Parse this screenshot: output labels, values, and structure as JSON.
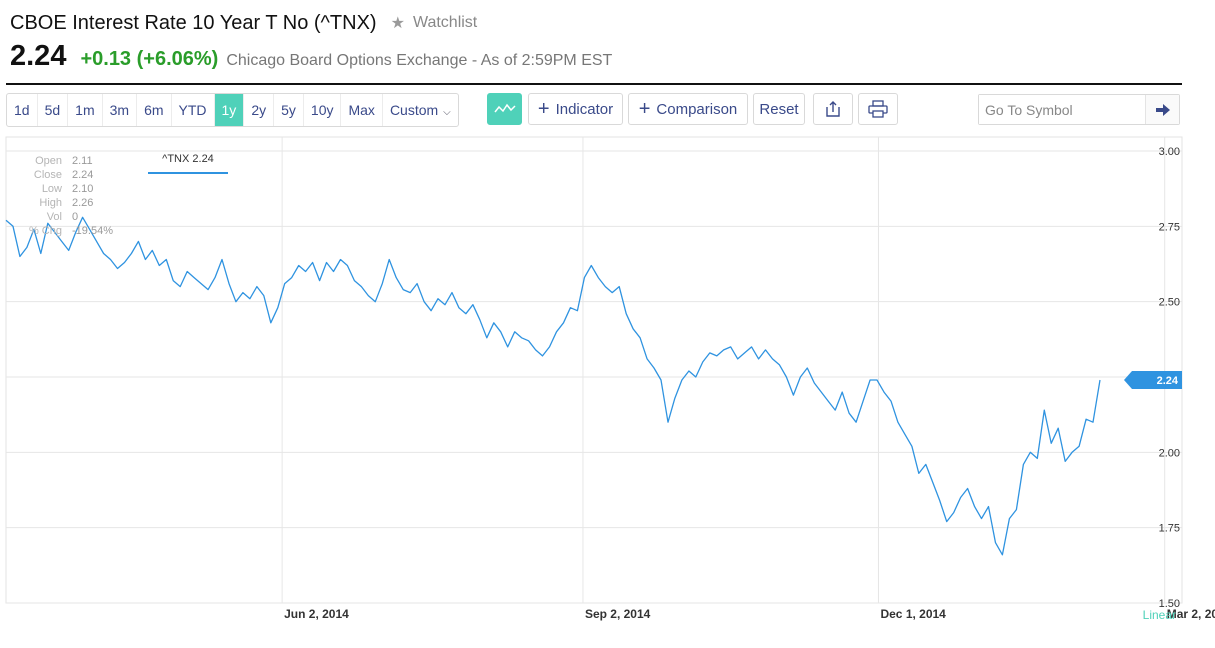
{
  "header": {
    "title": "CBOE Interest Rate 10 Year T No (^TNX)",
    "watchlist_label": "Watchlist",
    "price": "2.24",
    "change": "+0.13 (+6.06%)",
    "exchange_info": "Chicago Board Options Exchange - As of 2:59PM EST"
  },
  "toolbar": {
    "ranges": [
      "1d",
      "5d",
      "1m",
      "3m",
      "6m",
      "YTD",
      "1y",
      "2y",
      "5y",
      "10y",
      "Max",
      "Custom"
    ],
    "active_range": "1y",
    "indicator_label": "Indicator",
    "comparison_label": "Comparison",
    "reset_label": "Reset",
    "symbol_placeholder": "Go To Symbol"
  },
  "stats": {
    "labels": [
      "Open",
      "Close",
      "Low",
      "High",
      "Vol",
      "% Chg"
    ],
    "values": [
      "2.11",
      "2.24",
      "2.10",
      "2.26",
      "0",
      "-19.54%"
    ]
  },
  "legend": {
    "label": "^TNX 2.24"
  },
  "chart_data": {
    "type": "line",
    "series": [
      {
        "name": "^TNX",
        "values": [
          2.77,
          2.75,
          2.65,
          2.68,
          2.74,
          2.66,
          2.76,
          2.73,
          2.7,
          2.67,
          2.73,
          2.78,
          2.74,
          2.7,
          2.66,
          2.64,
          2.61,
          2.63,
          2.66,
          2.7,
          2.64,
          2.67,
          2.62,
          2.64,
          2.57,
          2.55,
          2.6,
          2.58,
          2.56,
          2.54,
          2.58,
          2.64,
          2.56,
          2.5,
          2.53,
          2.51,
          2.55,
          2.52,
          2.43,
          2.48,
          2.56,
          2.58,
          2.62,
          2.6,
          2.63,
          2.57,
          2.63,
          2.6,
          2.64,
          2.62,
          2.57,
          2.55,
          2.52,
          2.5,
          2.56,
          2.64,
          2.58,
          2.54,
          2.53,
          2.56,
          2.5,
          2.47,
          2.51,
          2.49,
          2.53,
          2.48,
          2.46,
          2.49,
          2.44,
          2.38,
          2.43,
          2.4,
          2.35,
          2.4,
          2.38,
          2.37,
          2.34,
          2.32,
          2.35,
          2.4,
          2.43,
          2.48,
          2.47,
          2.58,
          2.62,
          2.58,
          2.55,
          2.53,
          2.55,
          2.46,
          2.41,
          2.38,
          2.31,
          2.28,
          2.24,
          2.1,
          2.18,
          2.24,
          2.27,
          2.25,
          2.3,
          2.33,
          2.32,
          2.34,
          2.35,
          2.31,
          2.33,
          2.35,
          2.31,
          2.34,
          2.31,
          2.29,
          2.25,
          2.19,
          2.25,
          2.28,
          2.23,
          2.2,
          2.17,
          2.14,
          2.2,
          2.13,
          2.1,
          2.17,
          2.24,
          2.24,
          2.2,
          2.17,
          2.1,
          2.06,
          2.02,
          1.93,
          1.96,
          1.9,
          1.84,
          1.77,
          1.8,
          1.85,
          1.88,
          1.82,
          1.78,
          1.82,
          1.7,
          1.66,
          1.78,
          1.81,
          1.96,
          2.0,
          1.98,
          2.14,
          2.03,
          2.08,
          1.97,
          2.0,
          2.02,
          2.11,
          2.1,
          2.24
        ]
      }
    ],
    "x_tick_labels": [
      "Jun 2, 2014",
      "Sep 2, 2014",
      "Dec 1, 2014",
      "Mar 2, 20"
    ],
    "x_tick_positions": [
      0.2348,
      0.4906,
      0.7419,
      0.9853
    ],
    "y_ticks": [
      "3.00",
      "2.75",
      "2.50",
      "2.25",
      "2.00",
      "1.75",
      "1.50"
    ],
    "ylim": [
      1.5,
      3.0
    ],
    "last_value_label": "2.24",
    "scale_label": "Linear",
    "grid": true,
    "line_color": "#2f93e0",
    "grid_color": "#e6e6e6"
  }
}
